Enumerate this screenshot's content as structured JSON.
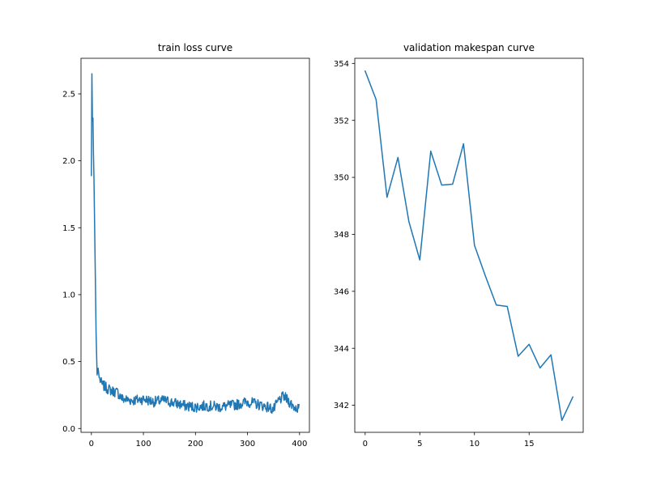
{
  "chart_data": [
    {
      "type": "line",
      "title": "train loss curve",
      "xlabel": "",
      "ylabel": "",
      "xlim": [
        -19.95,
        418.95
      ],
      "ylim": [
        -0.0287,
        2.766
      ],
      "xticks": [
        0,
        100,
        200,
        300,
        400
      ],
      "yticks": [
        0.0,
        0.5,
        1.0,
        1.5,
        2.0,
        2.5
      ],
      "xtick_labels": [
        "0",
        "100",
        "200",
        "300",
        "400"
      ],
      "ytick_labels": [
        "0.0",
        "0.5",
        "1.0",
        "1.5",
        "2.0",
        "2.5"
      ],
      "grid": false,
      "series": [
        {
          "color": "#1f77b4",
          "noise_amplitude": 0.04,
          "keypoints": [
            [
              0,
              1.89
            ],
            [
              1,
              2.65
            ],
            [
              2,
              2.3
            ],
            [
              3,
              2.32
            ],
            [
              4,
              2.05
            ],
            [
              5,
              1.86
            ],
            [
              7,
              1.3
            ],
            [
              9,
              0.72
            ],
            [
              11,
              0.4
            ],
            [
              13,
              0.45
            ],
            [
              15,
              0.38
            ],
            [
              20,
              0.33
            ],
            [
              30,
              0.3
            ],
            [
              40,
              0.28
            ],
            [
              50,
              0.27
            ],
            [
              60,
              0.22
            ],
            [
              80,
              0.21
            ],
            [
              100,
              0.22
            ],
            [
              120,
              0.2
            ],
            [
              140,
              0.21
            ],
            [
              160,
              0.19
            ],
            [
              180,
              0.17
            ],
            [
              200,
              0.16
            ],
            [
              220,
              0.17
            ],
            [
              250,
              0.16
            ],
            [
              280,
              0.18
            ],
            [
              300,
              0.2
            ],
            [
              320,
              0.18
            ],
            [
              340,
              0.16
            ],
            [
              350,
              0.14
            ],
            [
              360,
              0.21
            ],
            [
              370,
              0.24
            ],
            [
              380,
              0.2
            ],
            [
              390,
              0.16
            ],
            [
              399,
              0.15
            ]
          ]
        }
      ]
    },
    {
      "type": "line",
      "title": "validation makespan curve",
      "xlabel": "",
      "ylabel": "",
      "xlim": [
        -0.95,
        19.95
      ],
      "ylim": [
        341.05,
        354.18
      ],
      "xticks": [
        0,
        5,
        10,
        15
      ],
      "yticks": [
        342,
        344,
        346,
        348,
        350,
        352,
        354
      ],
      "xtick_labels": [
        "0",
        "5",
        "10",
        "15"
      ],
      "ytick_labels": [
        "342",
        "344",
        "346",
        "348",
        "350",
        "352",
        "354"
      ],
      "grid": false,
      "series": [
        {
          "color": "#1f77b4",
          "x": [
            0,
            1,
            2,
            3,
            4,
            5,
            6,
            7,
            8,
            9,
            10,
            11,
            12,
            13,
            14,
            15,
            16,
            17,
            18,
            19
          ],
          "values": [
            353.73,
            352.73,
            349.3,
            350.7,
            348.45,
            347.1,
            350.92,
            349.73,
            349.76,
            351.18,
            347.62,
            346.54,
            345.52,
            345.47,
            343.72,
            344.14,
            343.31,
            343.77,
            341.47,
            342.29
          ]
        }
      ]
    }
  ]
}
